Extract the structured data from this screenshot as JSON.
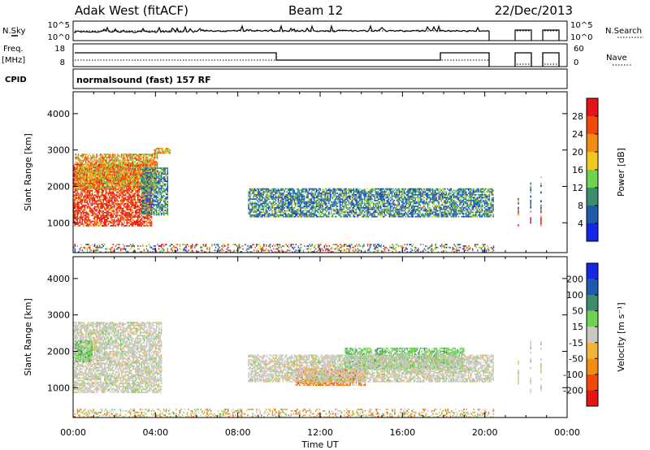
{
  "header": {
    "station": "Adak West (fitACF)",
    "beam": "Beam 12",
    "date": "22/Dec/2013"
  },
  "panels": {
    "nsky_label": "N.Sky",
    "nsearch_label": "N.Search",
    "freq_label": "Freq.",
    "freq_unit": "[MHz]",
    "nave_label": "Nave",
    "cpid_label": "CPID",
    "cpid_value": "normalsound (fast) 157 RF",
    "noise_ticks_left": [
      "10^5",
      "10^0"
    ],
    "noise_ticks_right": [
      "10^5",
      "10^0"
    ],
    "freq_ticks": [
      "18",
      "8"
    ],
    "nave_ticks": [
      "60",
      "0"
    ]
  },
  "colors": {
    "power_scale": [
      "#1428e6",
      "#1e5aaa",
      "#3c8c6e",
      "#6ed250",
      "#f0c820",
      "#f08c14",
      "#f04a0a",
      "#e61414"
    ],
    "velocity_scale": [
      "#e61414",
      "#f04a0a",
      "#f08c14",
      "#f0b43c",
      "#c8c8c0",
      "#6ed250",
      "#3c8c6e",
      "#1e5aaa",
      "#1428e6"
    ]
  },
  "chart_data": [
    {
      "type": "heatmap",
      "quantity": "power",
      "xlabel": "",
      "ylabel": "Slant Range [km]",
      "xlim": [
        0,
        24
      ],
      "ylim": [
        180,
        4600
      ],
      "x_ticks": [
        "00:00",
        "04:00",
        "08:00",
        "12:00",
        "16:00",
        "20:00",
        "00:00"
      ],
      "y_ticks": [
        1000,
        2000,
        3000,
        4000
      ],
      "colorbar": {
        "label": "Power [dB]",
        "range": [
          0,
          32
        ],
        "ticks": [
          4,
          8,
          12,
          16,
          20,
          24,
          28
        ]
      },
      "regions": [
        {
          "name": "morning-strong",
          "t0": 0.0,
          "t1": 3.8,
          "r0": 900,
          "r1": 2600,
          "level": "high"
        },
        {
          "name": "morning-upper",
          "t0": 0.1,
          "t1": 4.1,
          "r0": 1900,
          "r1": 2900,
          "level": "mid"
        },
        {
          "name": "morning-edge",
          "t0": 3.3,
          "t1": 4.6,
          "r0": 1200,
          "r1": 2500,
          "level": "low"
        },
        {
          "name": "band-3000",
          "t0": 3.9,
          "t1": 4.7,
          "r0": 2900,
          "r1": 3050,
          "level": "mid"
        },
        {
          "name": "midday-band",
          "t0": 8.5,
          "t1": 20.4,
          "r0": 1150,
          "r1": 1950,
          "level": "low"
        },
        {
          "name": "near-range",
          "t0": 0.0,
          "t1": 20.4,
          "r0": 180,
          "r1": 420,
          "level": "mixed"
        }
      ]
    },
    {
      "type": "heatmap",
      "quantity": "velocity",
      "xlabel": "Time UT",
      "ylabel": "Slant Range [km]",
      "xlim": [
        0,
        24
      ],
      "ylim": [
        180,
        4600
      ],
      "x_ticks": [
        "00:00",
        "04:00",
        "08:00",
        "12:00",
        "16:00",
        "20:00",
        "00:00"
      ],
      "y_ticks": [
        1000,
        2000,
        3000,
        4000
      ],
      "colorbar": {
        "label": "Velocity [m s⁻¹]",
        "ticks": [
          "-200",
          "-100",
          "-50",
          "-15",
          "15",
          "50",
          "100",
          "200"
        ]
      },
      "regions": [
        {
          "name": "morning-grey",
          "t0": 0.0,
          "t1": 4.3,
          "r0": 850,
          "r1": 2800,
          "level": "near-zero"
        },
        {
          "name": "morning-green",
          "t0": 0.1,
          "t1": 0.9,
          "r0": 1700,
          "r1": 2300,
          "level": "positive"
        },
        {
          "name": "midday-orange",
          "t0": 10.8,
          "t1": 14.2,
          "r0": 1050,
          "r1": 1500,
          "level": "negative"
        },
        {
          "name": "midday-green",
          "t0": 13.2,
          "t1": 19.0,
          "r0": 1500,
          "r1": 2100,
          "level": "positive"
        },
        {
          "name": "midday-grey",
          "t0": 8.5,
          "t1": 20.4,
          "r0": 1150,
          "r1": 1900,
          "level": "near-zero"
        },
        {
          "name": "near-range",
          "t0": 0.0,
          "t1": 20.4,
          "r0": 180,
          "r1": 420,
          "level": "mixed"
        }
      ]
    }
  ]
}
